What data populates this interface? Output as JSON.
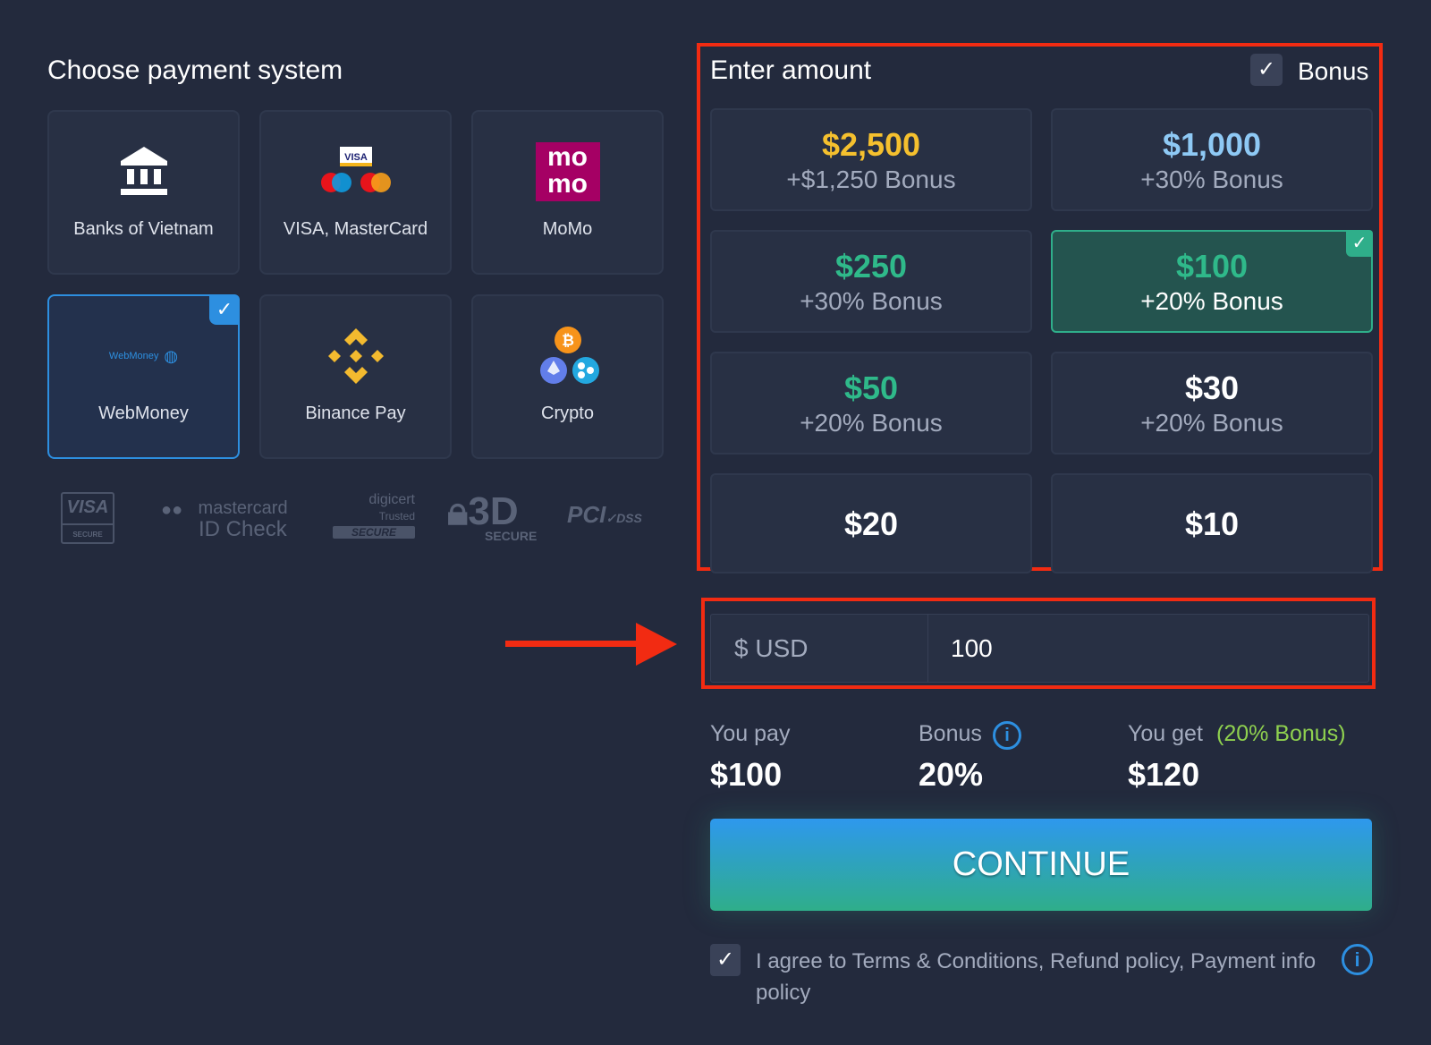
{
  "left": {
    "title": "Choose payment system",
    "methods": [
      {
        "label": "Banks of Vietnam",
        "icon": "bank-icon"
      },
      {
        "label": "VISA, MasterCard",
        "icon": "visa-mastercard-icon"
      },
      {
        "label": "MoMo",
        "icon": "momo-icon",
        "logo_text": "mo mo"
      },
      {
        "label": "WebMoney",
        "icon": "webmoney-icon",
        "logo_text": "WebMoney",
        "selected": true
      },
      {
        "label": "Binance Pay",
        "icon": "binance-icon"
      },
      {
        "label": "Crypto",
        "icon": "crypto-icon"
      }
    ],
    "trust_logos": [
      "VISA SECURE",
      "mastercard ID Check",
      "digicert Trusted SECURE",
      "3D SECURE",
      "PCI DSS"
    ]
  },
  "right": {
    "title": "Enter amount",
    "bonus_label": "Bonus",
    "bonus_checked": true,
    "amounts": [
      {
        "amount": "$2,500",
        "bonus": "+$1,250 Bonus",
        "color": "#f5c02e"
      },
      {
        "amount": "$1,000",
        "bonus": "+30% Bonus",
        "color": "#8ec9f5"
      },
      {
        "amount": "$250",
        "bonus": "+30% Bonus",
        "color": "#2fb98a"
      },
      {
        "amount": "$100",
        "bonus": "+20% Bonus",
        "color": "#2fb98a",
        "selected": true
      },
      {
        "amount": "$50",
        "bonus": "+20% Bonus",
        "color": "#2fb98a"
      },
      {
        "amount": "$30",
        "bonus": "+20% Bonus",
        "color": "#ffffff"
      },
      {
        "amount": "$20",
        "bonus": "",
        "color": "#ffffff"
      },
      {
        "amount": "$10",
        "bonus": "",
        "color": "#ffffff"
      }
    ],
    "currency": "$ USD",
    "input_value": "100",
    "summary": {
      "pay_label": "You pay",
      "pay_value": "$100",
      "bonus_label": "Bonus",
      "bonus_value": "20%",
      "get_label": "You get",
      "get_note": "(20% Bonus)",
      "get_value": "$120"
    },
    "continue_label": "CONTINUE",
    "agree_text": "I agree to Terms & Conditions, Refund policy, Payment info policy",
    "agree_checked": true
  },
  "colors": {
    "background": "#232a3d",
    "accent": "#2d8fe0",
    "selected_amount": "#2fae8a",
    "highlight": "#f22b12",
    "bonus_note": "#8fd14f"
  }
}
